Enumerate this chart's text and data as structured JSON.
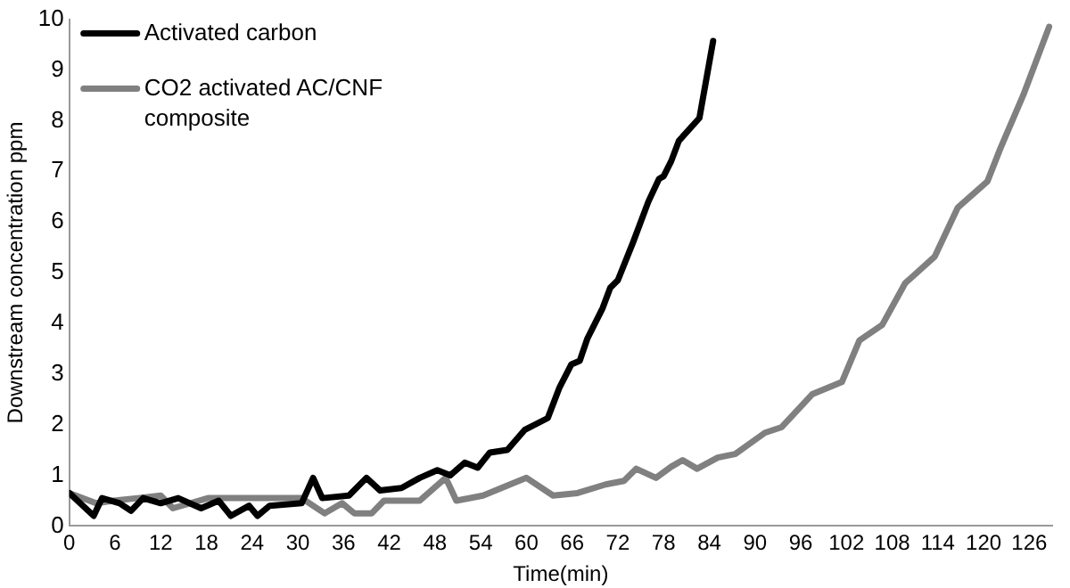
{
  "chart_data": {
    "type": "line",
    "xlabel": "Time(min)",
    "ylabel": "Downstream concentration ppm",
    "xlim": [
      0,
      129
    ],
    "xticks": [
      0,
      6,
      12,
      18,
      24,
      30,
      36,
      42,
      48,
      54,
      60,
      66,
      72,
      78,
      84,
      90,
      96,
      102,
      108,
      114,
      120,
      126
    ],
    "ylim": [
      0,
      10
    ],
    "yticks": [
      0,
      1,
      2,
      3,
      4,
      5,
      6,
      7,
      8,
      9,
      10
    ],
    "grid": false,
    "legend": "top left",
    "marker": "none",
    "line_style": "solid",
    "series": [
      {
        "name": "Activated carbon",
        "color": "#000000",
        "x": [
          0,
          3.2,
          4.3,
          6.6,
          8.1,
          9.7,
          12,
          14.3,
          17.3,
          19.6,
          21.2,
          23.6,
          24.7,
          26.3,
          30.5,
          32,
          33.2,
          36.7,
          39,
          40.8,
          43.6,
          46,
          48.3,
          50,
          51.9,
          53.6,
          55.2,
          57.5,
          59.8,
          62.8,
          64.3,
          65.9,
          67,
          68,
          70,
          71,
          72,
          74,
          76,
          77.4,
          78,
          79,
          80,
          82.7,
          84.5
        ],
        "values": [
          0.65,
          0.2,
          0.55,
          0.45,
          0.3,
          0.55,
          0.45,
          0.55,
          0.35,
          0.5,
          0.2,
          0.4,
          0.2,
          0.4,
          0.45,
          0.95,
          0.55,
          0.6,
          0.95,
          0.7,
          0.75,
          0.95,
          1.1,
          1.0,
          1.25,
          1.15,
          1.45,
          1.5,
          1.9,
          2.13,
          2.72,
          3.19,
          3.26,
          3.7,
          4.3,
          4.7,
          4.85,
          5.6,
          6.4,
          6.85,
          6.9,
          7.2,
          7.6,
          8.05,
          9.57
        ]
      },
      {
        "name": "CO2 activated AC/CNF composite",
        "color": "#808080",
        "x": [
          0,
          3.5,
          5.8,
          9,
          12,
          13.6,
          18.2,
          21,
          25.8,
          30.5,
          33.5,
          35.8,
          37.4,
          39.7,
          41.3,
          46,
          49.4,
          50.8,
          54.3,
          57.5,
          60,
          63.5,
          66.7,
          70.4,
          72.8,
          74.4,
          77,
          79,
          80.5,
          82.4,
          85.1,
          87.4,
          91.3,
          93.5,
          97.5,
          101.4,
          103.7,
          106.7,
          109.7,
          113.6,
          116.6,
          120.5,
          122.2,
          125.2,
          128.6
        ],
        "values": [
          0.65,
          0.45,
          0.5,
          0.55,
          0.6,
          0.35,
          0.55,
          0.55,
          0.55,
          0.55,
          0.25,
          0.45,
          0.25,
          0.25,
          0.5,
          0.5,
          0.95,
          0.5,
          0.6,
          0.8,
          0.95,
          0.6,
          0.65,
          0.82,
          0.89,
          1.13,
          0.95,
          1.17,
          1.3,
          1.13,
          1.35,
          1.42,
          1.84,
          1.95,
          2.6,
          2.84,
          3.66,
          3.97,
          4.79,
          5.32,
          6.28,
          6.8,
          7.45,
          8.5,
          9.85
        ]
      }
    ]
  }
}
